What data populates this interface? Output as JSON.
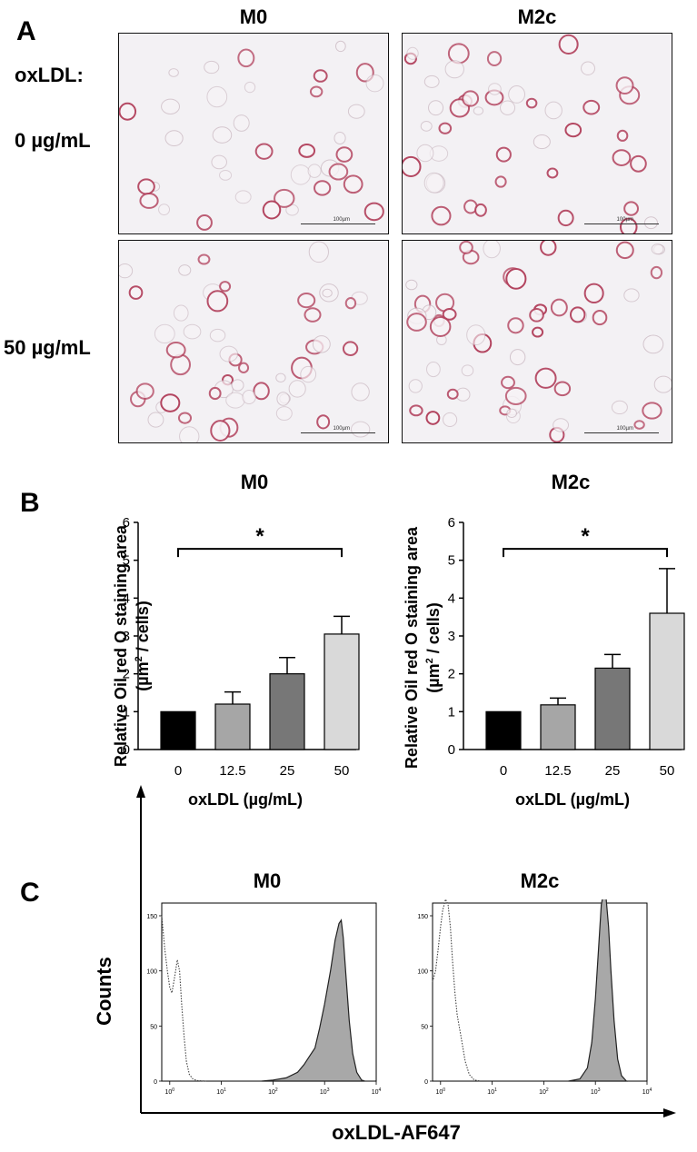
{
  "panel_a": {
    "letter": "A",
    "columns": [
      "M0",
      "M2c"
    ],
    "treatment_label": "oxLDL:",
    "rows": [
      "0 µg/mL",
      "50 µg/mL"
    ],
    "scale_bar_text": "100µm"
  },
  "panel_b": {
    "letter": "B"
  },
  "panel_c": {
    "letter": "C",
    "y_axis_label": "Counts",
    "x_axis_label": "oxLDL-AF647"
  },
  "colors": {
    "bar_0": "#000000",
    "bar_12_5": "#a6a6a6",
    "bar_25": "#777777",
    "bar_50": "#d9d9d9",
    "histogram_fill": "#a8a8a8",
    "cell_stain": "#b3445f"
  },
  "chart_data": [
    {
      "type": "bar",
      "title": "M0",
      "categories": [
        "0",
        "12.5",
        "25",
        "50"
      ],
      "values": [
        1.0,
        1.2,
        2.0,
        3.05
      ],
      "errors": [
        0.0,
        0.32,
        0.43,
        0.47
      ],
      "xlabel": "oxLDL (µg/mL)",
      "ylabel": "Relative Oil red O staining area",
      "ylabel_unit_prefix": "(µm",
      "ylabel_unit_sup": "2",
      "ylabel_unit_suffix": " / cells)",
      "ylim": [
        0,
        6
      ],
      "yticks": [
        "0",
        "1",
        "2",
        "3",
        "4",
        "5",
        "6"
      ],
      "significance": {
        "from": "0",
        "to": "50",
        "label": "*"
      }
    },
    {
      "type": "bar",
      "title": "M2c",
      "categories": [
        "0",
        "12.5",
        "25",
        "50"
      ],
      "values": [
        1.0,
        1.18,
        2.15,
        3.6
      ],
      "errors": [
        0.0,
        0.18,
        0.36,
        1.18
      ],
      "xlabel": "oxLDL (µg/mL)",
      "ylabel": "Relative Oil red O staining area",
      "ylabel_unit_prefix": "(µm",
      "ylabel_unit_sup": "2",
      "ylabel_unit_suffix": " / cells)",
      "ylim": [
        0,
        5
      ],
      "yticks": [
        "0",
        "1",
        "2",
        "3",
        "4",
        "5",
        "6"
      ],
      "significance": {
        "from": "0",
        "to": "50",
        "label": "*"
      }
    },
    {
      "type": "area",
      "title": "M0",
      "yticks": [
        "150",
        "100",
        "50",
        "0"
      ],
      "xticks_exp": [
        "0",
        "1",
        "2",
        "3",
        "4"
      ],
      "ylim": [
        0,
        150
      ],
      "x_scale": "log",
      "xlim": [
        0.7,
        10000
      ],
      "series": [
        {
          "style": "dotted",
          "points": [
            [
              0.7,
              150
            ],
            [
              0.8,
              120
            ],
            [
              0.9,
              100
            ],
            [
              1.0,
              85
            ],
            [
              1.1,
              80
            ],
            [
              1.25,
              95
            ],
            [
              1.4,
              110
            ],
            [
              1.55,
              100
            ],
            [
              1.7,
              70
            ],
            [
              1.9,
              40
            ],
            [
              2.1,
              18
            ],
            [
              2.4,
              6
            ],
            [
              2.8,
              2
            ],
            [
              3.4,
              0.5
            ],
            [
              5,
              0
            ]
          ]
        },
        {
          "style": "filled",
          "points": [
            [
              60,
              0
            ],
            [
              100,
              1
            ],
            [
              180,
              3
            ],
            [
              300,
              8
            ],
            [
              400,
              15
            ],
            [
              500,
              22
            ],
            [
              650,
              30
            ],
            [
              800,
              48
            ],
            [
              1000,
              70
            ],
            [
              1300,
              100
            ],
            [
              1600,
              128
            ],
            [
              1900,
              143
            ],
            [
              2100,
              146
            ],
            [
              2300,
              130
            ],
            [
              2600,
              95
            ],
            [
              3000,
              55
            ],
            [
              3500,
              25
            ],
            [
              4200,
              8
            ],
            [
              5200,
              1
            ],
            [
              6000,
              0
            ]
          ]
        }
      ]
    },
    {
      "type": "area",
      "title": "M2c",
      "yticks": [
        "150",
        "100",
        "50",
        "0"
      ],
      "xticks_exp": [
        "0",
        "1",
        "2",
        "3",
        "4"
      ],
      "ylim": [
        0,
        150
      ],
      "x_scale": "log",
      "xlim": [
        0.7,
        10000
      ],
      "series": [
        {
          "style": "dotted",
          "points": [
            [
              0.7,
              90
            ],
            [
              0.8,
              100
            ],
            [
              0.9,
              120
            ],
            [
              1.0,
              140
            ],
            [
              1.1,
              155
            ],
            [
              1.25,
              165
            ],
            [
              1.4,
              160
            ],
            [
              1.55,
              140
            ],
            [
              1.7,
              110
            ],
            [
              1.9,
              80
            ],
            [
              2.1,
              60
            ],
            [
              2.5,
              40
            ],
            [
              3.0,
              18
            ],
            [
              3.6,
              6
            ],
            [
              4.5,
              1
            ],
            [
              6,
              0
            ]
          ]
        },
        {
          "style": "filled",
          "points": [
            [
              300,
              0
            ],
            [
              500,
              2
            ],
            [
              700,
              12
            ],
            [
              850,
              35
            ],
            [
              1000,
              75
            ],
            [
              1150,
              120
            ],
            [
              1300,
              160
            ],
            [
              1450,
              172
            ],
            [
              1600,
              168
            ],
            [
              1800,
              140
            ],
            [
              2000,
              100
            ],
            [
              2300,
              55
            ],
            [
              2700,
              20
            ],
            [
              3200,
              5
            ],
            [
              4000,
              0
            ]
          ]
        }
      ]
    }
  ]
}
